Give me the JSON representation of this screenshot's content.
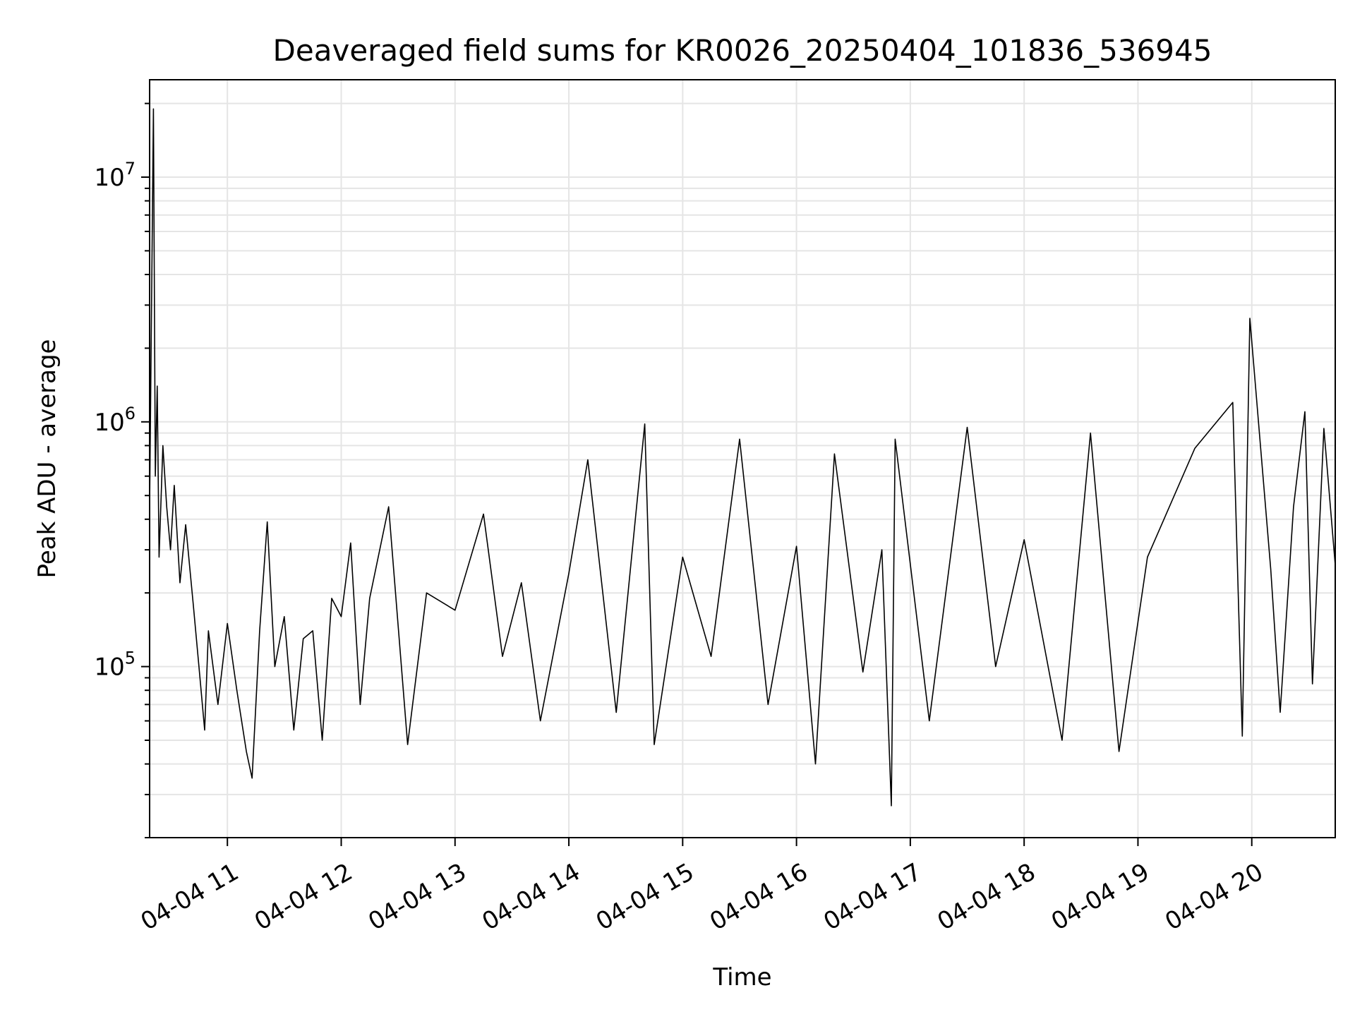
{
  "chart_data": {
    "type": "line",
    "title": "Deaveraged field sums for KR0026_20250404_101836_536945",
    "xlabel": "Time",
    "ylabel": "Peak ADU - average",
    "yscale": "log",
    "ylim": [
      20000,
      25000000
    ],
    "xlim": [
      "2025-04-04 10:19",
      "2025-04-04 20:44"
    ],
    "x_ticks": [
      {
        "x": "2025-04-04 11:00",
        "label": "04-04 11"
      },
      {
        "x": "2025-04-04 12:00",
        "label": "04-04 12"
      },
      {
        "x": "2025-04-04 13:00",
        "label": "04-04 13"
      },
      {
        "x": "2025-04-04 14:00",
        "label": "04-04 14"
      },
      {
        "x": "2025-04-04 15:00",
        "label": "04-04 15"
      },
      {
        "x": "2025-04-04 16:00",
        "label": "04-04 16"
      },
      {
        "x": "2025-04-04 17:00",
        "label": "04-04 17"
      },
      {
        "x": "2025-04-04 18:00",
        "label": "04-04 18"
      },
      {
        "x": "2025-04-04 19:00",
        "label": "04-04 19"
      },
      {
        "x": "2025-04-04 20:00",
        "label": "04-04 20"
      }
    ],
    "y_ticks": [
      {
        "value": 100000,
        "base": "10",
        "exp": "5"
      },
      {
        "value": 1000000,
        "base": "10",
        "exp": "6"
      },
      {
        "value": 10000000,
        "base": "10",
        "exp": "7"
      }
    ],
    "grid": true,
    "line_color": "#000000",
    "grid_color": "#e5e5e5",
    "series": [
      {
        "points": [
          [
            "2025-04-04 10:19",
            450000
          ],
          [
            "2025-04-04 10:21",
            19000000
          ],
          [
            "2025-04-04 10:22",
            600000
          ],
          [
            "2025-04-04 10:23",
            1400000
          ],
          [
            "2025-04-04 10:24",
            280000
          ],
          [
            "2025-04-04 10:26",
            800000
          ],
          [
            "2025-04-04 10:28",
            450000
          ],
          [
            "2025-04-04 10:30",
            300000
          ],
          [
            "2025-04-04 10:32",
            550000
          ],
          [
            "2025-04-04 10:35",
            220000
          ],
          [
            "2025-04-04 10:38",
            380000
          ],
          [
            "2025-04-04 10:42",
            180000
          ],
          [
            "2025-04-04 10:45",
            100000
          ],
          [
            "2025-04-04 10:48",
            55000
          ],
          [
            "2025-04-04 10:50",
            140000
          ],
          [
            "2025-04-04 10:55",
            70000
          ],
          [
            "2025-04-04 11:00",
            150000
          ],
          [
            "2025-04-04 11:05",
            80000
          ],
          [
            "2025-04-04 11:10",
            45000
          ],
          [
            "2025-04-04 11:13",
            35000
          ],
          [
            "2025-04-04 11:17",
            140000
          ],
          [
            "2025-04-04 11:21",
            390000
          ],
          [
            "2025-04-04 11:25",
            100000
          ],
          [
            "2025-04-04 11:30",
            160000
          ],
          [
            "2025-04-04 11:35",
            55000
          ],
          [
            "2025-04-04 11:40",
            130000
          ],
          [
            "2025-04-04 11:45",
            140000
          ],
          [
            "2025-04-04 11:50",
            50000
          ],
          [
            "2025-04-04 11:55",
            190000
          ],
          [
            "2025-04-04 12:00",
            160000
          ],
          [
            "2025-04-04 12:05",
            320000
          ],
          [
            "2025-04-04 12:10",
            70000
          ],
          [
            "2025-04-04 12:15",
            190000
          ],
          [
            "2025-04-04 12:25",
            450000
          ],
          [
            "2025-04-04 12:35",
            48000
          ],
          [
            "2025-04-04 12:45",
            200000
          ],
          [
            "2025-04-04 13:00",
            170000
          ],
          [
            "2025-04-04 13:15",
            420000
          ],
          [
            "2025-04-04 13:25",
            110000
          ],
          [
            "2025-04-04 13:35",
            220000
          ],
          [
            "2025-04-04 13:45",
            60000
          ],
          [
            "2025-04-04 14:00",
            240000
          ],
          [
            "2025-04-04 14:10",
            700000
          ],
          [
            "2025-04-04 14:25",
            65000
          ],
          [
            "2025-04-04 14:40",
            980000
          ],
          [
            "2025-04-04 14:45",
            48000
          ],
          [
            "2025-04-04 15:00",
            280000
          ],
          [
            "2025-04-04 15:15",
            110000
          ],
          [
            "2025-04-04 15:30",
            850000
          ],
          [
            "2025-04-04 15:45",
            70000
          ],
          [
            "2025-04-04 16:00",
            310000
          ],
          [
            "2025-04-04 16:10",
            40000
          ],
          [
            "2025-04-04 16:20",
            740000
          ],
          [
            "2025-04-04 16:35",
            95000
          ],
          [
            "2025-04-04 16:45",
            300000
          ],
          [
            "2025-04-04 16:50",
            27000
          ],
          [
            "2025-04-04 16:52",
            850000
          ],
          [
            "2025-04-04 17:10",
            60000
          ],
          [
            "2025-04-04 17:30",
            950000
          ],
          [
            "2025-04-04 17:45",
            100000
          ],
          [
            "2025-04-04 18:00",
            330000
          ],
          [
            "2025-04-04 18:20",
            50000
          ],
          [
            "2025-04-04 18:35",
            900000
          ],
          [
            "2025-04-04 18:50",
            45000
          ],
          [
            "2025-04-04 19:05",
            280000
          ],
          [
            "2025-04-04 19:30",
            780000
          ],
          [
            "2025-04-04 19:50",
            1200000
          ],
          [
            "2025-04-04 19:55",
            52000
          ],
          [
            "2025-04-04 19:59",
            2650000
          ],
          [
            "2025-04-04 20:10",
            250000
          ],
          [
            "2025-04-04 20:15",
            65000
          ],
          [
            "2025-04-04 20:22",
            450000
          ],
          [
            "2025-04-04 20:28",
            1100000
          ],
          [
            "2025-04-04 20:32",
            85000
          ],
          [
            "2025-04-04 20:38",
            940000
          ],
          [
            "2025-04-04 20:44",
            260000
          ]
        ]
      }
    ]
  }
}
